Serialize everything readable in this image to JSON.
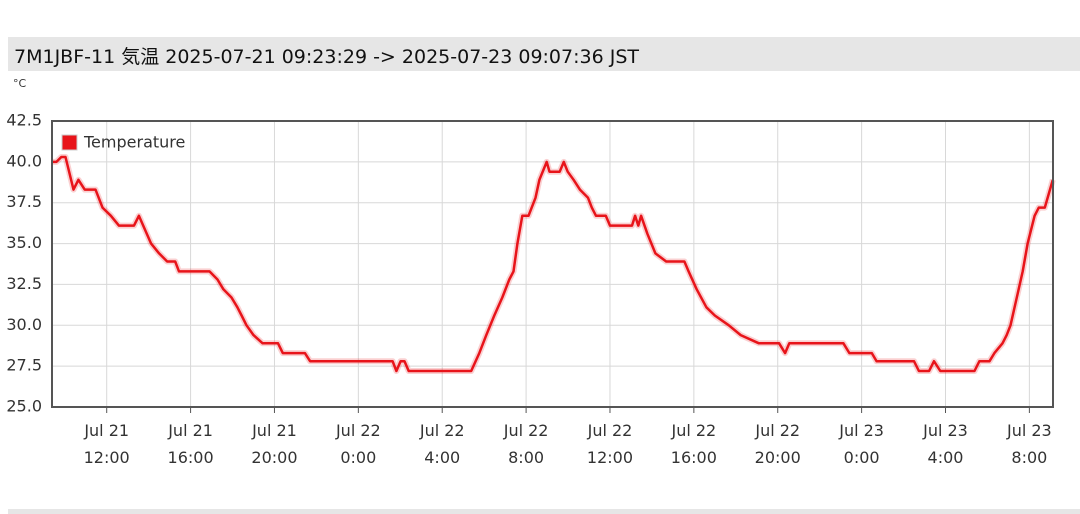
{
  "chart_data": {
    "type": "line",
    "title": "7M1JBF-11 気温 2025-07-21 09:23:29 -> 2025-07-23 09:07:36 JST",
    "y_label": "°C",
    "x": [
      "2025-07-21 09:23",
      "2025-07-21 09:36",
      "2025-07-21 09:50",
      "2025-07-21 10:02",
      "2025-07-21 10:25",
      "2025-07-21 10:39",
      "2025-07-21 10:57",
      "2025-07-21 11:28",
      "2025-07-21 11:48",
      "2025-07-21 12:12",
      "2025-07-21 12:35",
      "2025-07-21 13:18",
      "2025-07-21 13:32",
      "2025-07-21 14:07",
      "2025-07-21 14:30",
      "2025-07-21 14:53",
      "2025-07-21 15:16",
      "2025-07-21 15:27",
      "2025-07-21 16:54",
      "2025-07-21 17:17",
      "2025-07-21 17:34",
      "2025-07-21 17:57",
      "2025-07-21 18:14",
      "2025-07-21 18:26",
      "2025-07-21 18:40",
      "2025-07-21 19:00",
      "2025-07-21 19:26",
      "2025-07-21 20:10",
      "2025-07-21 20:24",
      "2025-07-21 21:27",
      "2025-07-21 21:42",
      "2025-07-22 01:38",
      "2025-07-22 01:49",
      "2025-07-22 02:01",
      "2025-07-22 02:12",
      "2025-07-22 02:24",
      "2025-07-22 05:23",
      "2025-07-22 05:46",
      "2025-07-22 06:06",
      "2025-07-22 06:29",
      "2025-07-22 06:52",
      "2025-07-22 07:12",
      "2025-07-22 07:24",
      "2025-07-22 07:35",
      "2025-07-22 07:49",
      "2025-07-22 08:07",
      "2025-07-22 08:27",
      "2025-07-22 08:38",
      "2025-07-22 08:59",
      "2025-07-22 09:07",
      "2025-07-22 09:36",
      "2025-07-22 09:48",
      "2025-07-22 09:59",
      "2025-07-22 10:16",
      "2025-07-22 10:34",
      "2025-07-22 10:57",
      "2025-07-22 11:08",
      "2025-07-22 11:20",
      "2025-07-22 11:48",
      "2025-07-22 12:00",
      "2025-07-22 13:03",
      "2025-07-22 13:12",
      "2025-07-22 13:21",
      "2025-07-22 13:29",
      "2025-07-22 13:47",
      "2025-07-22 14:10",
      "2025-07-22 14:41",
      "2025-07-22 15:33",
      "2025-07-22 15:45",
      "2025-07-22 16:08",
      "2025-07-22 16:36",
      "2025-07-22 17:00",
      "2025-07-22 17:40",
      "2025-07-22 18:14",
      "2025-07-22 19:06",
      "2025-07-22 20:04",
      "2025-07-22 20:21",
      "2025-07-22 20:33",
      "2025-07-22 23:08",
      "2025-07-22 23:25",
      "2025-07-23 00:29",
      "2025-07-23 00:43",
      "2025-07-23 02:30",
      "2025-07-23 02:44",
      "2025-07-23 03:13",
      "2025-07-23 03:27",
      "2025-07-23 03:45",
      "2025-07-23 05:23",
      "2025-07-23 05:37",
      "2025-07-23 06:06",
      "2025-07-23 06:20",
      "2025-07-23 06:43",
      "2025-07-23 06:55",
      "2025-07-23 07:06",
      "2025-07-23 07:24",
      "2025-07-23 07:41",
      "2025-07-23 07:55",
      "2025-07-23 08:15",
      "2025-07-23 08:27",
      "2025-07-23 08:44",
      "2025-07-23 09:07"
    ],
    "series": [
      {
        "name": "Temperature",
        "color": "#e8141a",
        "values": [
          40,
          40,
          40.3,
          40.3,
          38.3,
          38.9,
          38.3,
          38.3,
          37.2,
          36.7,
          36.1,
          36.1,
          36.7,
          35,
          34.4,
          33.9,
          33.9,
          33.3,
          33.3,
          32.8,
          32.2,
          31.7,
          31.1,
          30.6,
          30,
          29.4,
          28.9,
          28.9,
          28.3,
          28.3,
          27.8,
          27.8,
          27.2,
          27.8,
          27.8,
          27.2,
          27.2,
          28.3,
          29.4,
          30.6,
          31.7,
          32.8,
          33.3,
          35,
          36.7,
          36.7,
          37.8,
          38.9,
          40,
          39.4,
          39.4,
          40,
          39.4,
          38.9,
          38.3,
          37.8,
          37.2,
          36.7,
          36.7,
          36.1,
          36.1,
          36.7,
          36.1,
          36.7,
          35.6,
          34.4,
          33.9,
          33.9,
          33.3,
          32.2,
          31.1,
          30.6,
          30,
          29.4,
          28.9,
          28.9,
          28.3,
          28.9,
          28.9,
          28.3,
          28.3,
          27.8,
          27.8,
          27.2,
          27.2,
          27.8,
          27.2,
          27.2,
          27.8,
          27.8,
          28.3,
          28.9,
          29.4,
          30,
          31.7,
          33.3,
          35,
          36.7,
          37.2,
          37.2,
          38.9
        ]
      }
    ],
    "xlim": [
      "2025-07-21 09:23:29",
      "2025-07-23 09:07:36"
    ],
    "xticks": [
      {
        "value": "2025-07-21 12:00",
        "label": "Jul 21 12:00"
      },
      {
        "value": "2025-07-21 16:00",
        "label": "Jul 21 16:00"
      },
      {
        "value": "2025-07-21 20:00",
        "label": "Jul 21 20:00"
      },
      {
        "value": "2025-07-22 00:00",
        "label": "Jul 22 0:00"
      },
      {
        "value": "2025-07-22 04:00",
        "label": "Jul 22 4:00"
      },
      {
        "value": "2025-07-22 08:00",
        "label": "Jul 22 8:00"
      },
      {
        "value": "2025-07-22 12:00",
        "label": "Jul 22 12:00"
      },
      {
        "value": "2025-07-22 16:00",
        "label": "Jul 22 16:00"
      },
      {
        "value": "2025-07-22 20:00",
        "label": "Jul 22 20:00"
      },
      {
        "value": "2025-07-23 00:00",
        "label": "Jul 23 0:00"
      },
      {
        "value": "2025-07-23 04:00",
        "label": "Jul 23 4:00"
      },
      {
        "value": "2025-07-23 08:00",
        "label": "Jul 23 8:00"
      }
    ],
    "ylim": [
      25,
      42.5
    ],
    "yticks": [
      {
        "value": 25,
        "label": "25.0"
      },
      27.5,
      {
        "value": 30,
        "label": "30.0"
      },
      32.5,
      {
        "value": 35,
        "label": "35.0"
      },
      37.5,
      {
        "value": 40,
        "label": "40.0"
      },
      42.5
    ],
    "grid": true,
    "legend": "top-left"
  }
}
